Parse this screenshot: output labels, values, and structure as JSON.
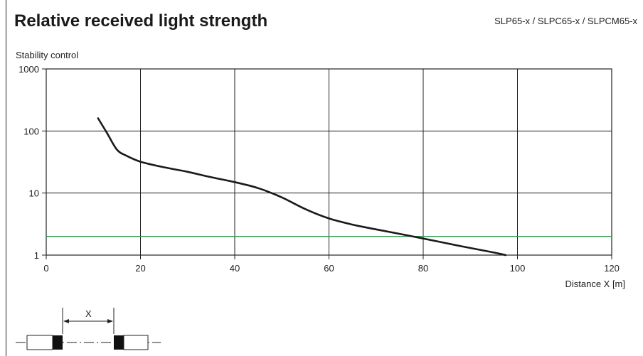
{
  "header": {
    "title": "Relative received light strength",
    "models": "SLP65-x / SLPC65-x / SLPCM65-x"
  },
  "chart_data": {
    "type": "line",
    "title": "Relative received light strength",
    "ylabel": "Stability control",
    "xlabel": "Distance X [m]",
    "xlim": [
      0,
      120
    ],
    "ylim": [
      1,
      1000
    ],
    "yscale": "log",
    "x_ticks": [
      "0",
      "20",
      "40",
      "60",
      "80",
      "100",
      "120"
    ],
    "y_ticks": [
      "1",
      "10",
      "100",
      "1000"
    ],
    "grid": true,
    "series": [
      {
        "color": "#1a1a1a",
        "x": [
          11,
          13,
          15,
          17,
          20,
          25,
          30,
          35,
          40,
          45,
          50,
          55,
          60,
          65,
          70,
          75,
          80,
          85,
          90,
          95,
          97.5
        ],
        "y": [
          160,
          90,
          50,
          40,
          32,
          26,
          22,
          18,
          15,
          12,
          8.5,
          5.5,
          3.9,
          3.1,
          2.6,
          2.2,
          1.85,
          1.55,
          1.3,
          1.1,
          1.0
        ]
      }
    ],
    "reference_line": {
      "y": 2,
      "color": "#2e9a4e"
    }
  },
  "diagram": {
    "dimension_label": "X"
  }
}
